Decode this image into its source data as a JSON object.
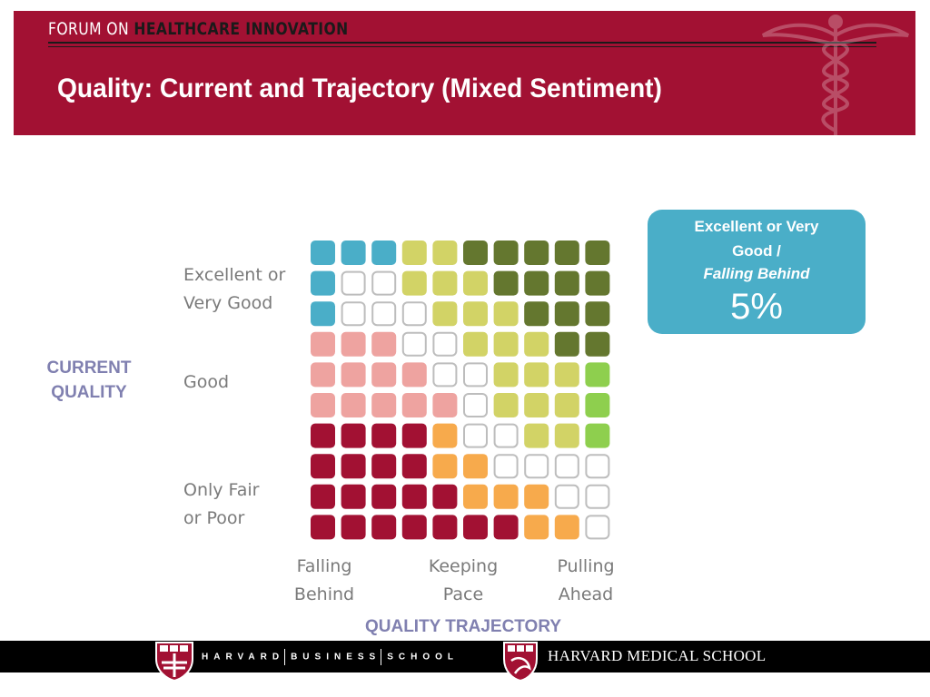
{
  "header": {
    "forum_prefix": "FORUM ON ",
    "forum_name": "HEALTHCARE INNOVATION",
    "title": "Quality: Current and Trajectory (Mixed Sentiment)"
  },
  "chart_data": {
    "type": "heatmap",
    "rows": 10,
    "columns": 10,
    "y_axis_title": "CURRENT\nQUALITY",
    "y_categories": [
      "Excellent or\nVery Good",
      "Good",
      "Only Fair\nor Poor"
    ],
    "x_axis_title": "QUALITY TRAJECTORY",
    "x_categories": [
      "Falling\nBehind",
      "Keeping\nPace",
      "Pulling\nAhead"
    ],
    "palette": {
      "B": "#4aaec8",
      "W": "#ffffff",
      "Y": "#d2d366",
      "G": "#64772f",
      "P": "#eea3a0",
      "L": "#8ecf4e",
      "M": "#a21133",
      "O": "#f7aa4c"
    },
    "cells": [
      "BBBYYGGGGG",
      "BWWYYYGGGG",
      "BWWWYYYGGG",
      "PPPWWYYYGG",
      "PPPPWWYYYL",
      "PPPPPWYYYL",
      "MMMMOWWYYL",
      "MMMMOOWWWW",
      "MMMMMOOOWW",
      "MMMMMMMOOW"
    ]
  },
  "callout": {
    "line1": "Excellent or Very\nGood /",
    "line2": "Falling Behind",
    "value": "5%",
    "color": "#4aaec8"
  },
  "footer": {
    "hbs_parts": [
      "HARVARD",
      "BUSINESS",
      "SCHOOL"
    ],
    "hms": "HARVARD MEDICAL SCHOOL"
  }
}
